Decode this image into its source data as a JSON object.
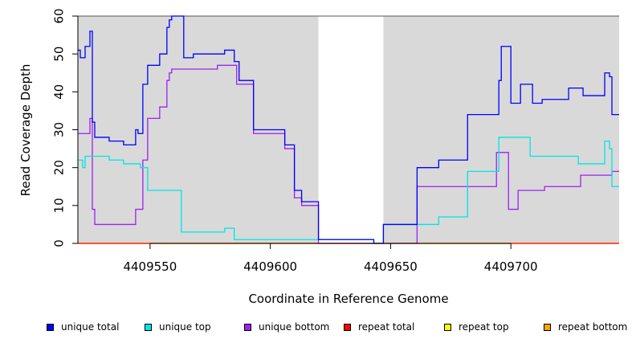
{
  "chart_data": {
    "type": "line",
    "xlabel": "Coordinate in Reference Genome",
    "ylabel": "Read Coverage Depth",
    "xlim": [
      4409520,
      4409745
    ],
    "ylim": [
      0,
      60
    ],
    "xticks": [
      4409550,
      4409600,
      4409650,
      4409700
    ],
    "yticks": [
      0,
      10,
      20,
      30,
      40,
      50,
      60
    ],
    "shaded_regions": [
      [
        4409520,
        4409620
      ],
      [
        4409647,
        4409745
      ]
    ],
    "line_style": "step",
    "legend_position": "bottom",
    "series": [
      {
        "name": "unique total",
        "color": "#0000ff",
        "x": [
          4409520,
          4409521,
          4409523,
          4409525,
          4409526,
          4409527,
          4409528,
          4409533,
          4409539,
          4409544,
          4409545,
          4409547,
          4409549,
          4409554,
          4409557,
          4409558,
          4409559,
          4409564,
          4409568,
          4409572,
          4409581,
          4409585,
          4409587,
          4409593,
          4409606,
          4409610,
          4409613,
          4409620,
          4409643,
          4409647,
          4409661,
          4409670,
          4409682,
          4409695,
          4409696,
          4409700,
          4409704,
          4409709,
          4409713,
          4409724,
          4409730,
          4409739,
          4409741,
          4409742,
          4409745
        ],
        "y": [
          51,
          49,
          52,
          56,
          32,
          28,
          28,
          27,
          26,
          30,
          29,
          42,
          47,
          50,
          57,
          59,
          60,
          49,
          50,
          50,
          51,
          48,
          43,
          30,
          26,
          14,
          11,
          1,
          0,
          5,
          20,
          22,
          34,
          43,
          52,
          37,
          42,
          37,
          38,
          41,
          39,
          45,
          44,
          34,
          34
        ]
      },
      {
        "name": "unique top",
        "color": "#00e5e5",
        "x": [
          4409520,
          4409522,
          4409523,
          4409533,
          4409539,
          4409546,
          4409549,
          4409563,
          4409565,
          4409573,
          4409581,
          4409585,
          4409620,
          4409643,
          4409647,
          4409661,
          4409670,
          4409682,
          4409695,
          4409708,
          4409724,
          4409728,
          4409739,
          4409741,
          4409742,
          4409745
        ],
        "y": [
          22,
          20,
          23,
          22,
          21,
          20,
          14,
          3,
          3,
          3,
          4,
          1,
          1,
          0,
          5,
          5,
          7,
          19,
          28,
          23,
          23,
          21,
          27,
          25,
          15,
          15
        ],
        "dashed": false
      },
      {
        "name": "unique bottom",
        "color": "#a020f0",
        "x": [
          4409520,
          4409525,
          4409526,
          4409527,
          4409544,
          4409547,
          4409549,
          4409554,
          4409557,
          4409558,
          4409559,
          4409567,
          4409578,
          4409586,
          4409593,
          4409606,
          4409610,
          4409613,
          4409620,
          4409661,
          4409694,
          4409699,
          4409703,
          4409714,
          4409720,
          4409729,
          4409742,
          4409745
        ],
        "y": [
          29,
          33,
          9,
          5,
          9,
          22,
          33,
          36,
          43,
          45,
          46,
          46,
          47,
          42,
          29,
          25,
          12,
          10,
          0,
          15,
          24,
          9,
          14,
          15,
          15,
          18,
          19,
          19
        ]
      },
      {
        "name": "repeat total",
        "color": "#ff0000",
        "x": [
          4409520,
          4409745
        ],
        "y": [
          0,
          0
        ]
      },
      {
        "name": "repeat top",
        "color": "#ffff00",
        "x": [
          4409520,
          4409745
        ],
        "y": [
          0,
          0
        ]
      },
      {
        "name": "repeat bottom",
        "color": "#ffa500",
        "x": [
          4409520,
          4409745
        ],
        "y": [
          0,
          0
        ]
      }
    ],
    "legend": [
      {
        "label": "unique total",
        "color": "#0000ff"
      },
      {
        "label": "unique top",
        "color": "#00e5e5"
      },
      {
        "label": "unique bottom",
        "color": "#a020f0"
      },
      {
        "label": "repeat total",
        "color": "#ff0000"
      },
      {
        "label": "repeat top",
        "color": "#ffff00"
      },
      {
        "label": "repeat bottom",
        "color": "#ffa500"
      }
    ]
  }
}
